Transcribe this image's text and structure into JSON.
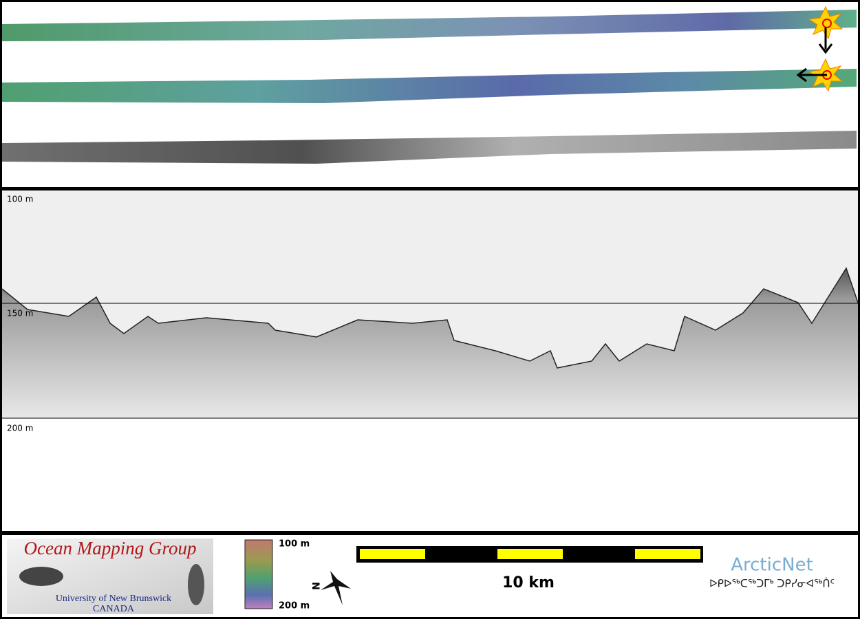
{
  "profile": {
    "depth_labels": [
      "100 m",
      "150 m",
      "200 m"
    ]
  },
  "footer": {
    "logo": {
      "title": "Ocean Mapping Group",
      "university": "University of New Brunswick",
      "country": "CANADA"
    },
    "colorbar": {
      "top_label": "100 m",
      "bottom_label": "200 m"
    },
    "north_label": "N",
    "scale_label": "10 km",
    "partner": {
      "name": "ArcticNet",
      "syllabics": "ᐅᑭᐅᖅᑕᖅᑐᒥᒃ ᑐᑭᓯᓂᐊᖅᑏᑦ"
    }
  }
}
